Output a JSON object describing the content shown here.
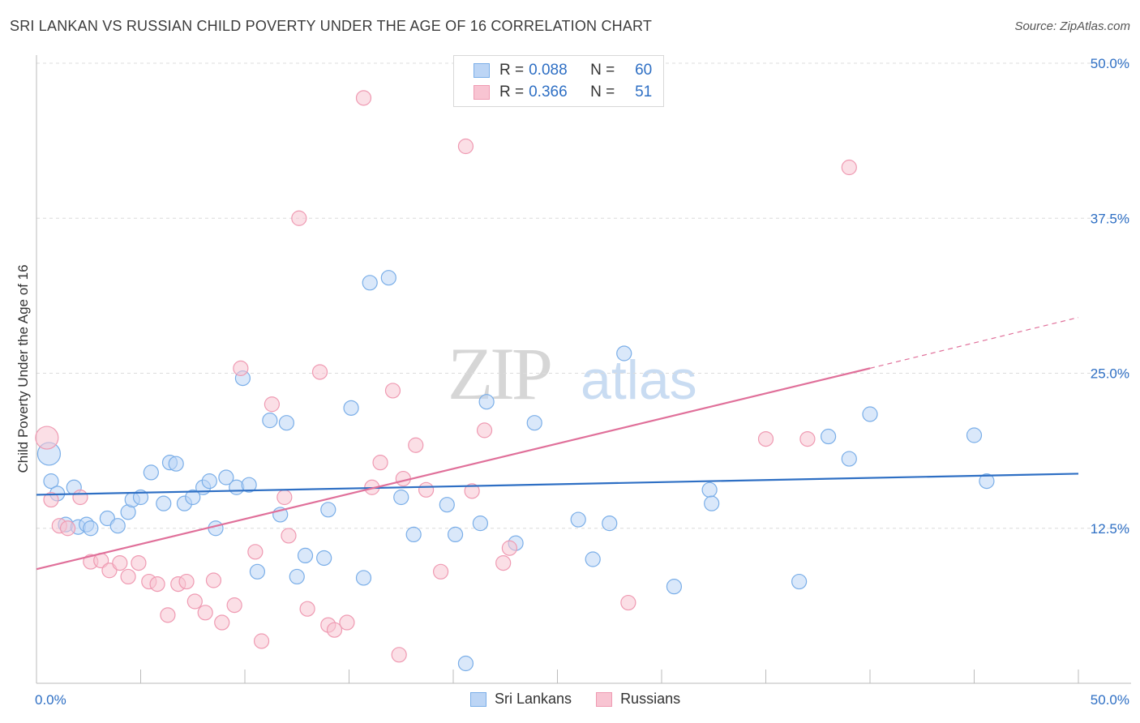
{
  "title": "SRI LANKAN VS RUSSIAN CHILD POVERTY UNDER THE AGE OF 16 CORRELATION CHART",
  "source": "Source: ZipAtlas.com",
  "watermark": {
    "zip": "ZIP",
    "atlas": "atlas"
  },
  "legend": {
    "r_label": "R =",
    "n_label": "N =",
    "series": [
      {
        "name": "Sri Lankans",
        "r": "0.088",
        "n": "60",
        "color": "#7aaee8",
        "fill": "#bcd5f5"
      },
      {
        "name": "Russians",
        "r": "0.366",
        "n": "51",
        "color": "#ef9ab2",
        "fill": "#f8c4d2"
      }
    ]
  },
  "chart_data": {
    "type": "scatter",
    "title": "SRI LANKAN VS RUSSIAN CHILD POVERTY UNDER THE AGE OF 16 CORRELATION CHART",
    "xlabel": "",
    "ylabel": "Child Poverty Under the Age of 16",
    "xlim": [
      0,
      50
    ],
    "ylim": [
      0,
      50
    ],
    "x_tick_labels": [
      "0.0%",
      "50.0%"
    ],
    "y_tick_labels": [
      "12.5%",
      "25.0%",
      "37.5%",
      "50.0%"
    ],
    "y_ticks": [
      12.5,
      25.0,
      37.5,
      50.0
    ],
    "series": [
      {
        "name": "Sri Lankans",
        "color": "#2e6fc4",
        "trend": {
          "x0": 0.0,
          "y0": 15.2,
          "x1": 50.0,
          "y1": 16.9
        },
        "points": [
          [
            0.6,
            18.5
          ],
          [
            0.7,
            16.3
          ],
          [
            1.0,
            15.3
          ],
          [
            1.4,
            12.8
          ],
          [
            1.8,
            15.8
          ],
          [
            2.0,
            12.6
          ],
          [
            2.4,
            12.8
          ],
          [
            2.6,
            12.5
          ],
          [
            3.4,
            13.3
          ],
          [
            3.9,
            12.7
          ],
          [
            4.4,
            13.8
          ],
          [
            4.6,
            14.8
          ],
          [
            5.0,
            15.0
          ],
          [
            5.5,
            17.0
          ],
          [
            6.1,
            14.5
          ],
          [
            6.4,
            17.8
          ],
          [
            6.7,
            17.7
          ],
          [
            7.1,
            14.5
          ],
          [
            7.5,
            15.0
          ],
          [
            8.0,
            15.8
          ],
          [
            8.3,
            16.3
          ],
          [
            8.6,
            12.5
          ],
          [
            9.1,
            16.6
          ],
          [
            9.6,
            15.8
          ],
          [
            9.9,
            24.6
          ],
          [
            10.2,
            16.0
          ],
          [
            10.6,
            9.0
          ],
          [
            11.2,
            21.2
          ],
          [
            11.7,
            13.6
          ],
          [
            12.0,
            21.0
          ],
          [
            12.5,
            8.6
          ],
          [
            12.9,
            10.3
          ],
          [
            13.8,
            10.1
          ],
          [
            14.0,
            14.0
          ],
          [
            15.1,
            22.2
          ],
          [
            15.7,
            8.5
          ],
          [
            16.0,
            32.3
          ],
          [
            16.9,
            32.7
          ],
          [
            17.5,
            15.0
          ],
          [
            18.1,
            12.0
          ],
          [
            19.7,
            14.4
          ],
          [
            20.1,
            12.0
          ],
          [
            20.6,
            1.6
          ],
          [
            21.3,
            12.9
          ],
          [
            21.6,
            22.7
          ],
          [
            23.0,
            11.3
          ],
          [
            23.9,
            21.0
          ],
          [
            26.0,
            13.2
          ],
          [
            26.7,
            10.0
          ],
          [
            27.5,
            12.9
          ],
          [
            28.2,
            26.6
          ],
          [
            30.6,
            7.8
          ],
          [
            32.3,
            15.6
          ],
          [
            32.4,
            14.5
          ],
          [
            36.6,
            8.2
          ],
          [
            38.0,
            19.9
          ],
          [
            39.0,
            18.1
          ],
          [
            40.0,
            21.7
          ],
          [
            45.0,
            20.0
          ],
          [
            45.6,
            16.3
          ]
        ]
      },
      {
        "name": "Russians",
        "color": "#e0709a",
        "trend": {
          "x0": 0.0,
          "y0": 9.2,
          "x1": 40.0,
          "y1": 25.4
        },
        "trend_dashed": {
          "x0": 40.0,
          "y0": 25.4,
          "x1": 50.0,
          "y1": 29.5
        },
        "points": [
          [
            0.5,
            19.8
          ],
          [
            0.7,
            14.8
          ],
          [
            1.1,
            12.7
          ],
          [
            1.5,
            12.5
          ],
          [
            2.1,
            15.0
          ],
          [
            2.6,
            9.8
          ],
          [
            3.1,
            9.9
          ],
          [
            3.5,
            9.1
          ],
          [
            4.0,
            9.7
          ],
          [
            4.4,
            8.6
          ],
          [
            4.9,
            9.7
          ],
          [
            5.4,
            8.2
          ],
          [
            5.8,
            8.0
          ],
          [
            6.3,
            5.5
          ],
          [
            6.8,
            8.0
          ],
          [
            7.2,
            8.2
          ],
          [
            7.6,
            6.6
          ],
          [
            8.1,
            5.7
          ],
          [
            8.5,
            8.3
          ],
          [
            8.9,
            4.9
          ],
          [
            9.5,
            6.3
          ],
          [
            9.8,
            25.4
          ],
          [
            10.5,
            10.6
          ],
          [
            10.8,
            3.4
          ],
          [
            11.3,
            22.5
          ],
          [
            11.9,
            15.0
          ],
          [
            12.1,
            11.9
          ],
          [
            12.6,
            37.5
          ],
          [
            13.0,
            6.0
          ],
          [
            13.6,
            25.1
          ],
          [
            14.0,
            4.7
          ],
          [
            14.3,
            4.3
          ],
          [
            14.9,
            4.9
          ],
          [
            15.7,
            47.2
          ],
          [
            16.1,
            15.8
          ],
          [
            16.5,
            17.8
          ],
          [
            17.1,
            23.6
          ],
          [
            17.4,
            2.3
          ],
          [
            17.6,
            16.5
          ],
          [
            18.2,
            19.2
          ],
          [
            18.7,
            15.6
          ],
          [
            19.4,
            9.0
          ],
          [
            20.6,
            43.3
          ],
          [
            20.9,
            15.5
          ],
          [
            21.5,
            20.4
          ],
          [
            22.4,
            9.7
          ],
          [
            22.7,
            10.9
          ],
          [
            28.4,
            6.5
          ],
          [
            35.0,
            19.7
          ],
          [
            37.0,
            19.7
          ],
          [
            39.0,
            41.6
          ]
        ]
      }
    ]
  }
}
